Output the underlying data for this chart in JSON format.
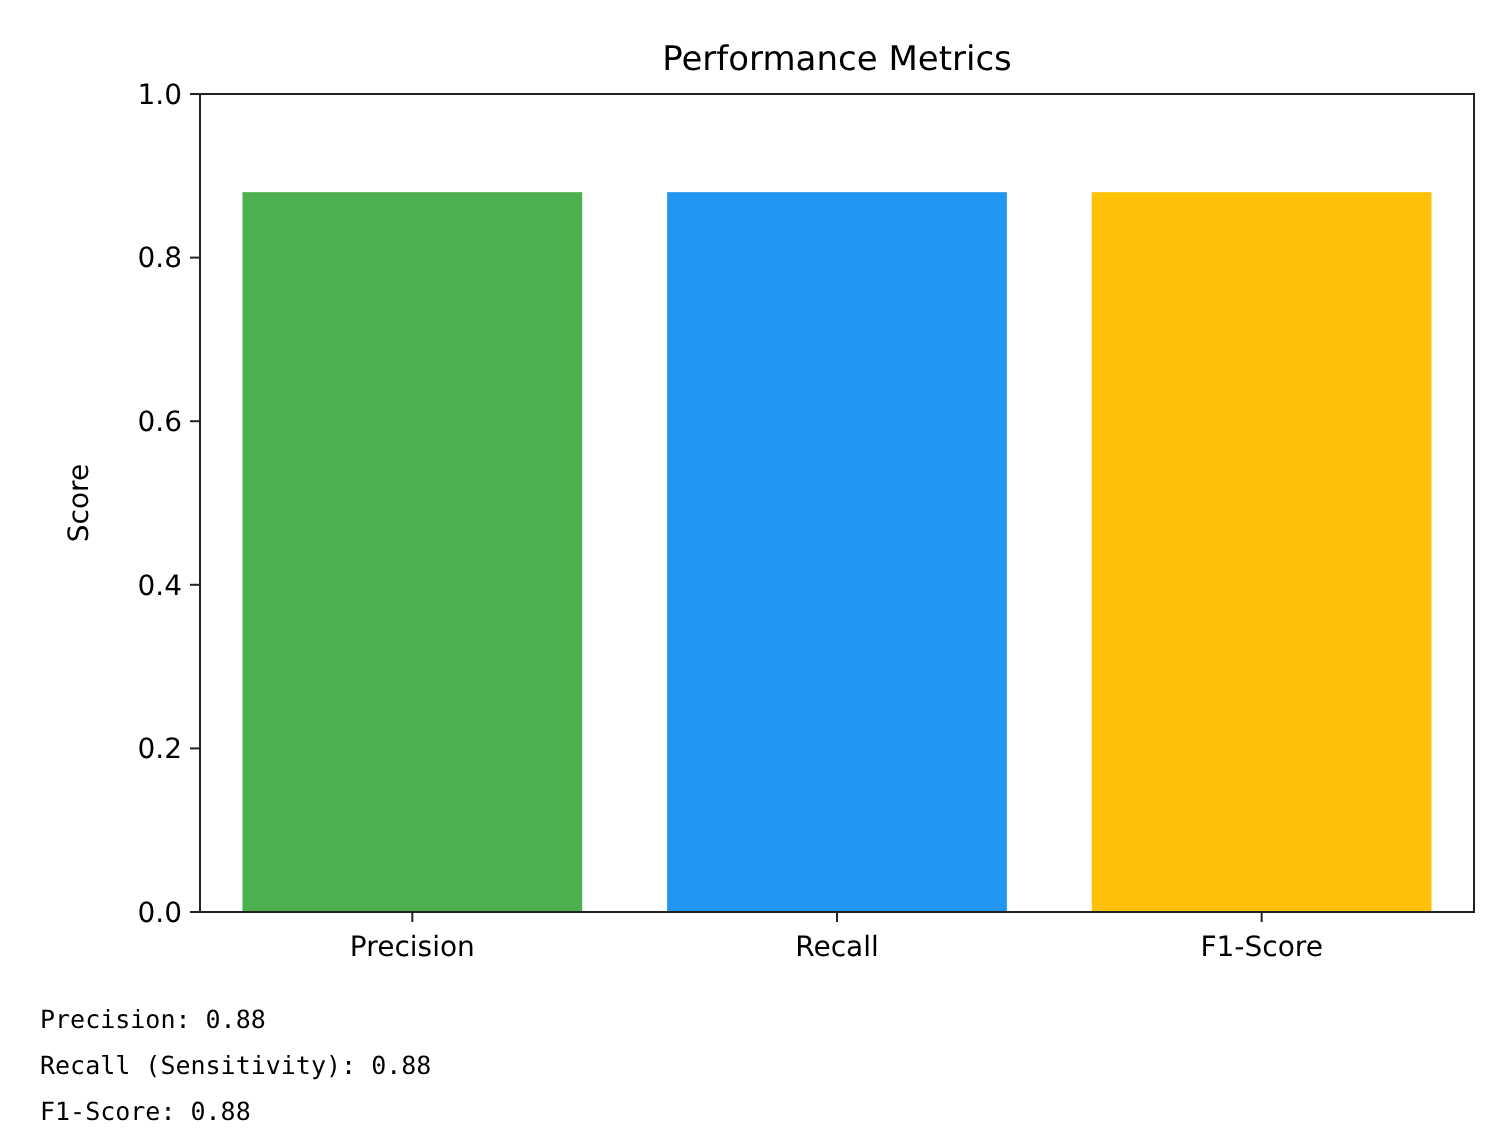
{
  "chart_data": {
    "type": "bar",
    "title": "Performance Metrics",
    "ylabel": "Score",
    "categories": [
      "Precision",
      "Recall",
      "F1-Score"
    ],
    "values": [
      0.88,
      0.88,
      0.88
    ],
    "colors": [
      "#4caf50",
      "#2196f3",
      "#ffc107"
    ],
    "ylim": [
      0,
      1
    ],
    "yticks": [
      {
        "value": 0,
        "label": "0.0"
      },
      {
        "value": 0.2,
        "label": "0.2"
      },
      {
        "value": 0.4,
        "label": "0.4"
      },
      {
        "value": 0.6,
        "label": "0.6"
      },
      {
        "value": 0.8,
        "label": "0.8"
      },
      {
        "value": 1,
        "label": "1.0"
      }
    ],
    "annotations": [
      "Precision: 0.88",
      "Recall (Sensitivity): 0.88",
      "F1-Score: 0.88"
    ]
  }
}
